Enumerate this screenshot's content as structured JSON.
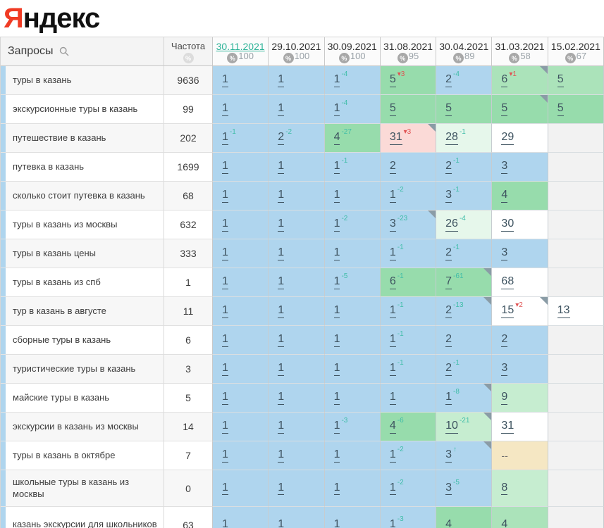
{
  "logo": {
    "first_letter": "Я",
    "rest": "ндекс"
  },
  "icons": {
    "queries_header": "search-icon",
    "frequency_header": "percent-icon",
    "coverage_badge": "percent-icon"
  },
  "colors": {
    "logo_red": "#f03b24",
    "active_date_link": "#2eb398",
    "sup_improve": "#3fbda8",
    "sup_decline": "#e05252",
    "cell_bg": {
      "blue": "#afd5ee",
      "green1": "#97dcac",
      "green2": "#abe3ba",
      "green3": "#c6edd0",
      "green4": "#e6f7eb",
      "pink": "#fbdad7",
      "beige": "#f5e7c3",
      "white": "#ffffff",
      "empty": "#f2f2f2"
    }
  },
  "table": {
    "queries_header": "Запросы",
    "frequency_header": "Частота",
    "columns": [
      {
        "date": "30.11.2021",
        "coverage": "100",
        "active": true
      },
      {
        "date": "29.10.2021",
        "coverage": "100"
      },
      {
        "date": "30.09.2021",
        "coverage": "100"
      },
      {
        "date": "31.08.2021",
        "coverage": "95"
      },
      {
        "date": "30.04.2021",
        "coverage": "89"
      },
      {
        "date": "31.03.2021",
        "coverage": "58"
      },
      {
        "date": "15.02.2021",
        "coverage": "67"
      }
    ],
    "rows": [
      {
        "query": "туры в казань",
        "frequency": "9636",
        "cells": [
          {
            "v": "1",
            "bg": "blue"
          },
          {
            "v": "1",
            "bg": "blue"
          },
          {
            "v": "1",
            "sup": "-4",
            "supc": "teal",
            "bg": "blue"
          },
          {
            "v": "5",
            "sup": "▾3",
            "supc": "red",
            "bg": "green1"
          },
          {
            "v": "2",
            "sup": "-4",
            "supc": "teal",
            "bg": "blue"
          },
          {
            "v": "6",
            "sup": "▾1",
            "supc": "red",
            "bg": "green2",
            "tri": true
          },
          {
            "v": "5",
            "bg": "green2"
          }
        ]
      },
      {
        "query": "экскурсионные туры в казань",
        "frequency": "99",
        "cells": [
          {
            "v": "1",
            "bg": "blue"
          },
          {
            "v": "1",
            "bg": "blue"
          },
          {
            "v": "1",
            "sup": "-4",
            "supc": "teal",
            "bg": "blue"
          },
          {
            "v": "5",
            "bg": "green1"
          },
          {
            "v": "5",
            "bg": "green1"
          },
          {
            "v": "5",
            "bg": "green1",
            "tri": true
          },
          {
            "v": "5",
            "bg": "green1"
          }
        ]
      },
      {
        "query": "путешествие в казань",
        "frequency": "202",
        "cells": [
          {
            "v": "1",
            "sup": "-1",
            "supc": "teal",
            "bg": "blue"
          },
          {
            "v": "2",
            "sup": "-2",
            "supc": "teal",
            "bg": "blue"
          },
          {
            "v": "4",
            "sup": "-27",
            "supc": "teal",
            "bg": "green1"
          },
          {
            "v": "31",
            "sup": "▾3",
            "supc": "red",
            "bg": "pink",
            "tri": true
          },
          {
            "v": "28",
            "sup": "-1",
            "supc": "teal",
            "bg": "green4"
          },
          {
            "v": "29",
            "bg": "white"
          },
          {
            "bg": "empty"
          }
        ]
      },
      {
        "query": "путевка в казань",
        "frequency": "1699",
        "cells": [
          {
            "v": "1",
            "bg": "blue"
          },
          {
            "v": "1",
            "bg": "blue"
          },
          {
            "v": "1",
            "sup": "-1",
            "supc": "teal",
            "bg": "blue"
          },
          {
            "v": "2",
            "bg": "blue"
          },
          {
            "v": "2",
            "sup": "-1",
            "supc": "teal",
            "bg": "blue"
          },
          {
            "v": "3",
            "bg": "blue"
          },
          {
            "bg": "empty"
          }
        ]
      },
      {
        "query": "сколько стоит путевка в казань",
        "frequency": "68",
        "cells": [
          {
            "v": "1",
            "bg": "blue"
          },
          {
            "v": "1",
            "bg": "blue"
          },
          {
            "v": "1",
            "bg": "blue"
          },
          {
            "v": "1",
            "sup": "-2",
            "supc": "teal",
            "bg": "blue"
          },
          {
            "v": "3",
            "sup": "-1",
            "supc": "teal",
            "bg": "blue"
          },
          {
            "v": "4",
            "bg": "green1"
          },
          {
            "bg": "empty"
          }
        ]
      },
      {
        "query": "туры в казань из москвы",
        "frequency": "632",
        "cells": [
          {
            "v": "1",
            "bg": "blue"
          },
          {
            "v": "1",
            "bg": "blue"
          },
          {
            "v": "1",
            "sup": "-2",
            "supc": "teal",
            "bg": "blue"
          },
          {
            "v": "3",
            "sup": "-23",
            "supc": "teal",
            "bg": "blue",
            "tri": true
          },
          {
            "v": "26",
            "sup": "-4",
            "supc": "teal",
            "bg": "green4"
          },
          {
            "v": "30",
            "bg": "white"
          },
          {
            "bg": "empty"
          }
        ]
      },
      {
        "query": "туры в казань цены",
        "frequency": "333",
        "cells": [
          {
            "v": "1",
            "bg": "blue"
          },
          {
            "v": "1",
            "bg": "blue"
          },
          {
            "v": "1",
            "bg": "blue"
          },
          {
            "v": "1",
            "sup": "-1",
            "supc": "teal",
            "bg": "blue"
          },
          {
            "v": "2",
            "sup": "-1",
            "supc": "teal",
            "bg": "blue"
          },
          {
            "v": "3",
            "bg": "blue"
          },
          {
            "bg": "empty"
          }
        ]
      },
      {
        "query": "туры в казань из спб",
        "frequency": "1",
        "cells": [
          {
            "v": "1",
            "bg": "blue"
          },
          {
            "v": "1",
            "bg": "blue"
          },
          {
            "v": "1",
            "sup": "-5",
            "supc": "teal",
            "bg": "blue"
          },
          {
            "v": "6",
            "sup": "-1",
            "supc": "teal",
            "bg": "green1"
          },
          {
            "v": "7",
            "sup": "-61",
            "supc": "teal",
            "bg": "green1",
            "tri": true
          },
          {
            "v": "68",
            "bg": "white"
          },
          {
            "bg": "empty"
          }
        ]
      },
      {
        "query": "тур в казань в августе",
        "frequency": "11",
        "cells": [
          {
            "v": "1",
            "bg": "blue"
          },
          {
            "v": "1",
            "bg": "blue"
          },
          {
            "v": "1",
            "bg": "blue"
          },
          {
            "v": "1",
            "sup": "-1",
            "supc": "teal",
            "bg": "blue"
          },
          {
            "v": "2",
            "sup": "-13",
            "supc": "teal",
            "bg": "blue",
            "tri": true
          },
          {
            "v": "15",
            "sup": "▾2",
            "supc": "red",
            "bg": "white",
            "tri": true
          },
          {
            "v": "13",
            "bg": "white"
          }
        ]
      },
      {
        "query": "сборные туры в казань",
        "frequency": "6",
        "cells": [
          {
            "v": "1",
            "bg": "blue"
          },
          {
            "v": "1",
            "bg": "blue"
          },
          {
            "v": "1",
            "bg": "blue"
          },
          {
            "v": "1",
            "sup": "-1",
            "supc": "teal",
            "bg": "blue"
          },
          {
            "v": "2",
            "bg": "blue"
          },
          {
            "v": "2",
            "bg": "blue"
          },
          {
            "bg": "empty"
          }
        ]
      },
      {
        "query": "туристические туры в казань",
        "frequency": "3",
        "cells": [
          {
            "v": "1",
            "bg": "blue"
          },
          {
            "v": "1",
            "bg": "blue"
          },
          {
            "v": "1",
            "bg": "blue"
          },
          {
            "v": "1",
            "sup": "-1",
            "supc": "teal",
            "bg": "blue"
          },
          {
            "v": "2",
            "sup": "-1",
            "supc": "teal",
            "bg": "blue"
          },
          {
            "v": "3",
            "bg": "blue"
          },
          {
            "bg": "empty"
          }
        ]
      },
      {
        "query": "майские туры в казань",
        "frequency": "5",
        "cells": [
          {
            "v": "1",
            "bg": "blue"
          },
          {
            "v": "1",
            "bg": "blue"
          },
          {
            "v": "1",
            "bg": "blue"
          },
          {
            "v": "1",
            "bg": "blue"
          },
          {
            "v": "1",
            "sup": "-8",
            "supc": "teal",
            "bg": "blue",
            "tri": true
          },
          {
            "v": "9",
            "bg": "green3"
          },
          {
            "bg": "empty"
          }
        ]
      },
      {
        "query": "экскурсии в казань из москвы",
        "frequency": "14",
        "cells": [
          {
            "v": "1",
            "bg": "blue"
          },
          {
            "v": "1",
            "bg": "blue"
          },
          {
            "v": "1",
            "sup": "-3",
            "supc": "teal",
            "bg": "blue"
          },
          {
            "v": "4",
            "sup": "-6",
            "supc": "teal",
            "bg": "green1"
          },
          {
            "v": "10",
            "sup": "-21",
            "supc": "teal",
            "bg": "green3",
            "tri": true
          },
          {
            "v": "31",
            "bg": "white"
          },
          {
            "bg": "empty"
          }
        ]
      },
      {
        "query": "туры в казань в октябре",
        "frequency": "7",
        "cells": [
          {
            "v": "1",
            "bg": "blue"
          },
          {
            "v": "1",
            "bg": "blue"
          },
          {
            "v": "1",
            "bg": "blue"
          },
          {
            "v": "1",
            "sup": "-2",
            "supc": "teal",
            "bg": "blue"
          },
          {
            "v": "3",
            "sup": "↑",
            "supc": "teal",
            "bg": "blue",
            "tri": true
          },
          {
            "v": "--",
            "bg": "beige",
            "plain": true
          },
          {
            "bg": "empty"
          }
        ]
      },
      {
        "query": "школьные туры в казань из москвы",
        "frequency": "0",
        "tall": true,
        "cells": [
          {
            "v": "1",
            "bg": "blue"
          },
          {
            "v": "1",
            "bg": "blue"
          },
          {
            "v": "1",
            "bg": "blue"
          },
          {
            "v": "1",
            "sup": "-2",
            "supc": "teal",
            "bg": "blue"
          },
          {
            "v": "3",
            "sup": "-5",
            "supc": "teal",
            "bg": "blue"
          },
          {
            "v": "8",
            "bg": "green3"
          },
          {
            "bg": "empty"
          }
        ]
      },
      {
        "query": "казань экскурсии для школьников",
        "frequency": "63",
        "tall": true,
        "cells": [
          {
            "v": "1",
            "bg": "blue"
          },
          {
            "v": "1",
            "bg": "blue"
          },
          {
            "v": "1",
            "bg": "blue"
          },
          {
            "v": "1",
            "sup": "-3",
            "supc": "teal",
            "bg": "blue"
          },
          {
            "v": "4",
            "bg": "green1"
          },
          {
            "v": "4",
            "bg": "green2"
          },
          {
            "bg": "empty"
          }
        ]
      }
    ]
  }
}
